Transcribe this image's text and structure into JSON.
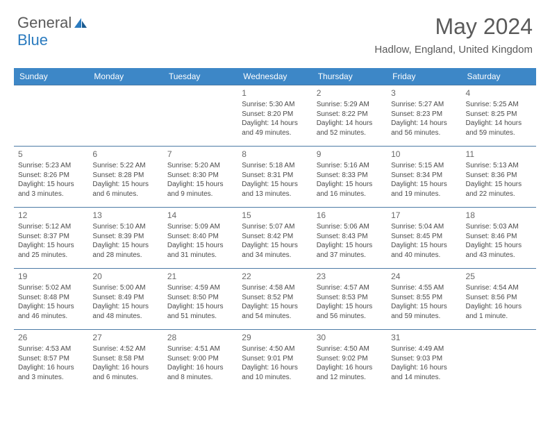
{
  "brand": {
    "part1": "General",
    "part2": "Blue",
    "icon_color": "#2b7bbf"
  },
  "title": "May 2024",
  "location": "Hadlow, England, United Kingdom",
  "colors": {
    "header_bg": "#3d87c7",
    "header_text": "#ffffff",
    "row_border": "#4a79a5",
    "daynum": "#686868",
    "info_text": "#4a4a4a"
  },
  "days_of_week": [
    "Sunday",
    "Monday",
    "Tuesday",
    "Wednesday",
    "Thursday",
    "Friday",
    "Saturday"
  ],
  "weeks": [
    [
      null,
      null,
      null,
      {
        "num": "1",
        "sunrise": "5:30 AM",
        "sunset": "8:20 PM",
        "daylight": "14 hours and 49 minutes."
      },
      {
        "num": "2",
        "sunrise": "5:29 AM",
        "sunset": "8:22 PM",
        "daylight": "14 hours and 52 minutes."
      },
      {
        "num": "3",
        "sunrise": "5:27 AM",
        "sunset": "8:23 PM",
        "daylight": "14 hours and 56 minutes."
      },
      {
        "num": "4",
        "sunrise": "5:25 AM",
        "sunset": "8:25 PM",
        "daylight": "14 hours and 59 minutes."
      }
    ],
    [
      {
        "num": "5",
        "sunrise": "5:23 AM",
        "sunset": "8:26 PM",
        "daylight": "15 hours and 3 minutes."
      },
      {
        "num": "6",
        "sunrise": "5:22 AM",
        "sunset": "8:28 PM",
        "daylight": "15 hours and 6 minutes."
      },
      {
        "num": "7",
        "sunrise": "5:20 AM",
        "sunset": "8:30 PM",
        "daylight": "15 hours and 9 minutes."
      },
      {
        "num": "8",
        "sunrise": "5:18 AM",
        "sunset": "8:31 PM",
        "daylight": "15 hours and 13 minutes."
      },
      {
        "num": "9",
        "sunrise": "5:16 AM",
        "sunset": "8:33 PM",
        "daylight": "15 hours and 16 minutes."
      },
      {
        "num": "10",
        "sunrise": "5:15 AM",
        "sunset": "8:34 PM",
        "daylight": "15 hours and 19 minutes."
      },
      {
        "num": "11",
        "sunrise": "5:13 AM",
        "sunset": "8:36 PM",
        "daylight": "15 hours and 22 minutes."
      }
    ],
    [
      {
        "num": "12",
        "sunrise": "5:12 AM",
        "sunset": "8:37 PM",
        "daylight": "15 hours and 25 minutes."
      },
      {
        "num": "13",
        "sunrise": "5:10 AM",
        "sunset": "8:39 PM",
        "daylight": "15 hours and 28 minutes."
      },
      {
        "num": "14",
        "sunrise": "5:09 AM",
        "sunset": "8:40 PM",
        "daylight": "15 hours and 31 minutes."
      },
      {
        "num": "15",
        "sunrise": "5:07 AM",
        "sunset": "8:42 PM",
        "daylight": "15 hours and 34 minutes."
      },
      {
        "num": "16",
        "sunrise": "5:06 AM",
        "sunset": "8:43 PM",
        "daylight": "15 hours and 37 minutes."
      },
      {
        "num": "17",
        "sunrise": "5:04 AM",
        "sunset": "8:45 PM",
        "daylight": "15 hours and 40 minutes."
      },
      {
        "num": "18",
        "sunrise": "5:03 AM",
        "sunset": "8:46 PM",
        "daylight": "15 hours and 43 minutes."
      }
    ],
    [
      {
        "num": "19",
        "sunrise": "5:02 AM",
        "sunset": "8:48 PM",
        "daylight": "15 hours and 46 minutes."
      },
      {
        "num": "20",
        "sunrise": "5:00 AM",
        "sunset": "8:49 PM",
        "daylight": "15 hours and 48 minutes."
      },
      {
        "num": "21",
        "sunrise": "4:59 AM",
        "sunset": "8:50 PM",
        "daylight": "15 hours and 51 minutes."
      },
      {
        "num": "22",
        "sunrise": "4:58 AM",
        "sunset": "8:52 PM",
        "daylight": "15 hours and 54 minutes."
      },
      {
        "num": "23",
        "sunrise": "4:57 AM",
        "sunset": "8:53 PM",
        "daylight": "15 hours and 56 minutes."
      },
      {
        "num": "24",
        "sunrise": "4:55 AM",
        "sunset": "8:55 PM",
        "daylight": "15 hours and 59 minutes."
      },
      {
        "num": "25",
        "sunrise": "4:54 AM",
        "sunset": "8:56 PM",
        "daylight": "16 hours and 1 minute."
      }
    ],
    [
      {
        "num": "26",
        "sunrise": "4:53 AM",
        "sunset": "8:57 PM",
        "daylight": "16 hours and 3 minutes."
      },
      {
        "num": "27",
        "sunrise": "4:52 AM",
        "sunset": "8:58 PM",
        "daylight": "16 hours and 6 minutes."
      },
      {
        "num": "28",
        "sunrise": "4:51 AM",
        "sunset": "9:00 PM",
        "daylight": "16 hours and 8 minutes."
      },
      {
        "num": "29",
        "sunrise": "4:50 AM",
        "sunset": "9:01 PM",
        "daylight": "16 hours and 10 minutes."
      },
      {
        "num": "30",
        "sunrise": "4:50 AM",
        "sunset": "9:02 PM",
        "daylight": "16 hours and 12 minutes."
      },
      {
        "num": "31",
        "sunrise": "4:49 AM",
        "sunset": "9:03 PM",
        "daylight": "16 hours and 14 minutes."
      },
      null
    ]
  ],
  "labels": {
    "sunrise": "Sunrise:",
    "sunset": "Sunset:",
    "daylight": "Daylight:"
  }
}
